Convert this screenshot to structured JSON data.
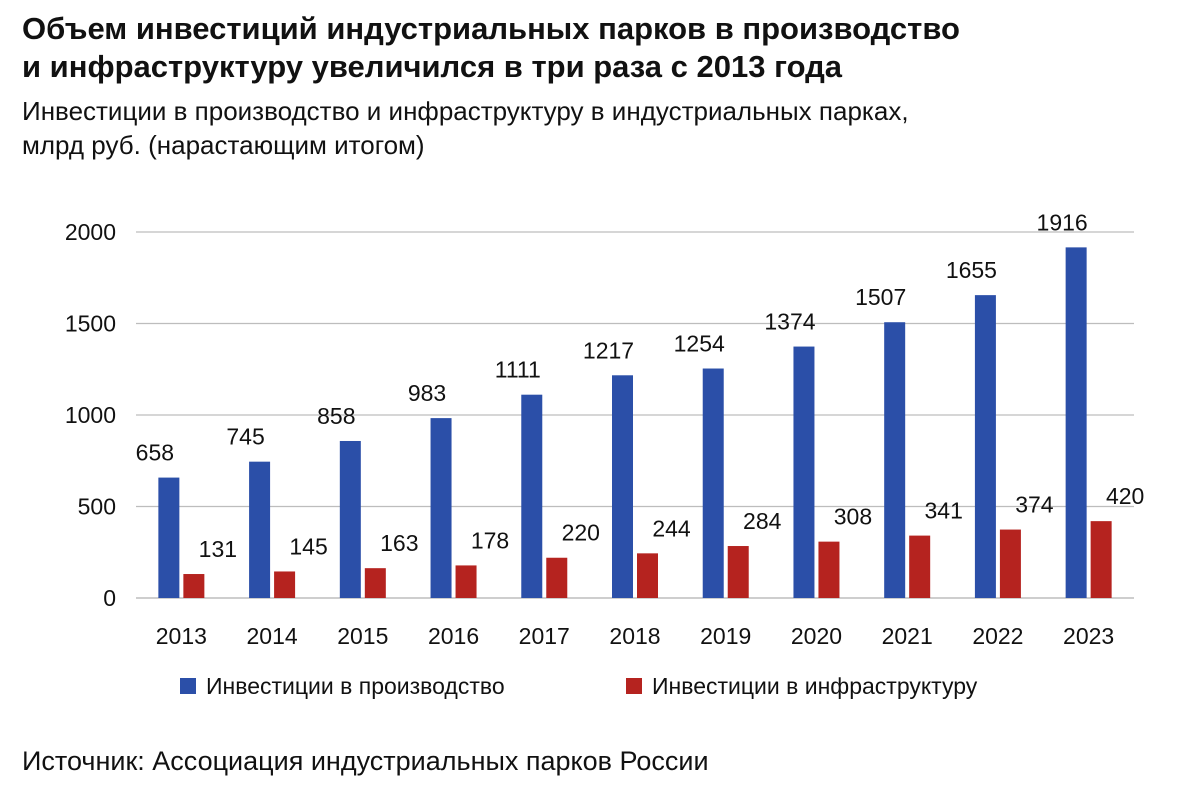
{
  "title_line1": "Объем инвестиций индустриальных парков в производство",
  "title_line2": "и инфраструктуру увеличился в три раза с 2013 года",
  "subtitle_line1": "Инвестиции в производство и инфраструктуру в индустриальных парках,",
  "subtitle_line2": "млрд руб. (нарастающим итогом)",
  "source": "Источник: Ассоциация индустриальных парков России",
  "colors": {
    "production": "#2B4FA8",
    "infrastructure": "#B5231F",
    "grid": "#BDBDBD"
  },
  "chart_data": {
    "type": "bar",
    "categories": [
      "2013",
      "2014",
      "2015",
      "2016",
      "2017",
      "2018",
      "2019",
      "2020",
      "2021",
      "2022",
      "2023"
    ],
    "series": [
      {
        "name": "Инвестиции в производство",
        "values": [
          658,
          745,
          858,
          983,
          1111,
          1217,
          1254,
          1374,
          1507,
          1655,
          1916
        ]
      },
      {
        "name": "Инвестиции в инфраструктуру",
        "values": [
          131,
          145,
          163,
          178,
          220,
          244,
          284,
          308,
          341,
          374,
          420
        ]
      }
    ],
    "ylim": [
      0,
      2000
    ],
    "yticks": [
      0,
      500,
      1000,
      1500,
      2000
    ],
    "grid": true,
    "legend": "bottom",
    "data_labels": true
  }
}
